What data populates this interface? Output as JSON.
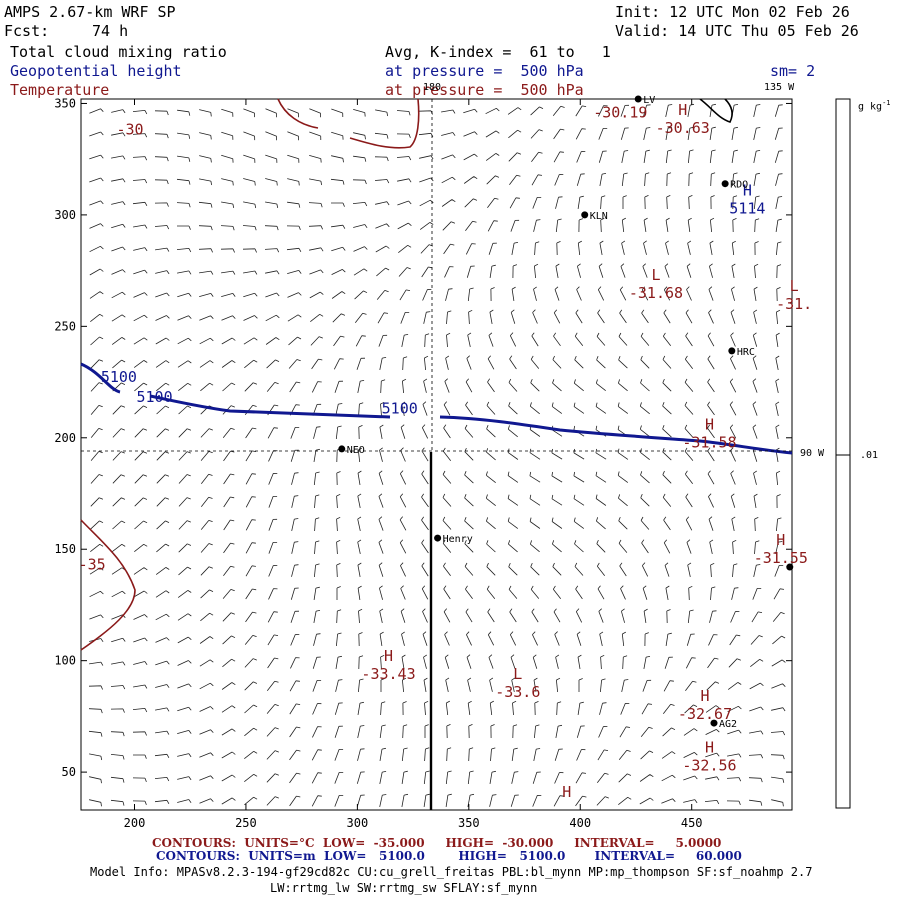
{
  "header": {
    "model": "AMPS 2.67-km WRF SP",
    "init": "Init: 12 UTC Mon 02 Feb 26",
    "fcst_label": "Fcst:",
    "fcst_value": "74 h",
    "valid": "Valid: 14 UTC Thu 05 Feb 26",
    "field1": "Total cloud mixing ratio",
    "avg": "Avg, K-index =  61 to   1",
    "field2": "Geopotential height",
    "pressure1": "at pressure =  500 hPa",
    "sm": "sm= 2",
    "field3": "Temperature",
    "pressure2": "at pressure =  500 hPa"
  },
  "colorbar": {
    "units": "g kg",
    "units_sup": "-1",
    "tick": ".01"
  },
  "colors": {
    "height": "#101890",
    "temperature": "#8b1a1a",
    "black": "#000000"
  },
  "map": {
    "lon_labels": [
      "180",
      "135 W",
      "90 W"
    ],
    "x_ticks": [
      200,
      250,
      300,
      350,
      400,
      450
    ],
    "y_ticks": [
      50,
      100,
      150,
      200,
      250,
      300,
      350
    ],
    "x_range": [
      176,
      495
    ],
    "y_range": [
      33,
      352
    ],
    "stations": [
      {
        "name": "LV",
        "x": 426,
        "y": 352
      },
      {
        "name": "RDQ",
        "x": 465,
        "y": 314
      },
      {
        "name": "KLN",
        "x": 402,
        "y": 300
      },
      {
        "name": "HRC",
        "x": 468,
        "y": 239
      },
      {
        "name": "NEO",
        "x": 293,
        "y": 195
      },
      {
        "name": "Henry",
        "x": 336,
        "y": 155
      },
      {
        "name": "AG2",
        "x": 460,
        "y": 72
      },
      {
        "name": "",
        "x": 494,
        "y": 142
      }
    ],
    "extrema": [
      {
        "type": "H",
        "value": "-30.63",
        "x": 437,
        "y": 343,
        "color": "temperature"
      },
      {
        "type": "",
        "value": "-30.19",
        "x": 409,
        "y": 350,
        "color": "temperature"
      },
      {
        "type": "H",
        "value": "5114",
        "x": 466,
        "y": 307,
        "color": "height"
      },
      {
        "type": "L",
        "value": "-31.68",
        "x": 425,
        "y": 269,
        "color": "temperature"
      },
      {
        "type": "L",
        "value": "-31.",
        "x": 487,
        "y": 264,
        "color": "temperature"
      },
      {
        "type": "H",
        "value": "-31.58",
        "x": 449,
        "y": 202,
        "color": "temperature"
      },
      {
        "type": "H",
        "value": "-31.55",
        "x": 481,
        "y": 150,
        "color": "temperature"
      },
      {
        "type": "H",
        "value": "-33.43",
        "x": 305,
        "y": 98,
        "color": "temperature"
      },
      {
        "type": "L",
        "value": "-33.6",
        "x": 363,
        "y": 90,
        "color": "temperature"
      },
      {
        "type": "H",
        "value": "-32.67",
        "x": 447,
        "y": 80,
        "color": "temperature"
      },
      {
        "type": "H",
        "value": "-32.56",
        "x": 449,
        "y": 57,
        "color": "temperature"
      },
      {
        "type": "H",
        "value": "",
        "x": 385,
        "y": 37,
        "color": "temperature"
      }
    ],
    "contour_labels": [
      {
        "text": "-30",
        "x": 198,
        "y": 336,
        "color": "temperature"
      },
      {
        "text": "-35",
        "x": 181,
        "y": 141,
        "color": "temperature"
      },
      {
        "text": "5100",
        "x": 193,
        "y": 225,
        "color": "height"
      },
      {
        "text": "5100",
        "x": 209,
        "y": 216,
        "color": "height"
      },
      {
        "text": "5100",
        "x": 319,
        "y": 211,
        "color": "height"
      }
    ]
  },
  "footer": {
    "line1_label": "CONTOURS:",
    "line1_units": "UNITS=°C",
    "line1_low": "LOW=  -35.000",
    "line1_high": "HIGH=  -30.000",
    "line1_interval": "INTERVAL=     5.0000",
    "line2_label": "CONTOURS:",
    "line2_units": "UNITS=m",
    "line2_low": "LOW=   5100.0",
    "line2_high": "HIGH=   5100.0",
    "line2_interval": "INTERVAL=     60.000",
    "model_info": "Model Info: MPASv8.2.3-194-gf29cd82c CU:cu_grell_freitas PBL:bl_mynn MP:mp_thompson SF:sf_noahmp 2.7",
    "model_info2": "LW:rrtmg_lw SW:rrtmg_sw SFLAY:sf_mynn"
  }
}
